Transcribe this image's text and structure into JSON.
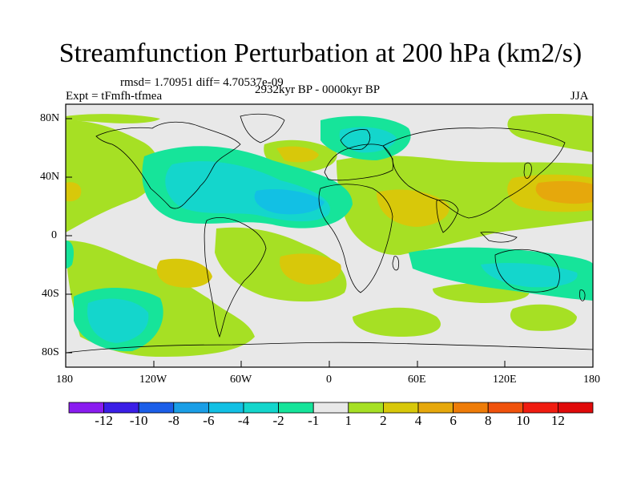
{
  "header": {
    "title": "Streamfunction Perturbation at 200 hPa (km2/s)",
    "stats": "rmsd= 1.70951 diff= 4.70537e-09",
    "experiment": "Expt = tFmfh-tfmea",
    "period": "2932kyr BP - 0000kyr BP",
    "season": "JJA"
  },
  "axes": {
    "lat_labels": [
      "80N",
      "40N",
      "0",
      "40S",
      "80S"
    ],
    "lon_labels": [
      "180",
      "120W",
      "60W",
      "0",
      "60E",
      "120E",
      "180"
    ]
  },
  "colorbar": {
    "labels": [
      "-12",
      "-10",
      "-8",
      "-6",
      "-4",
      "-2",
      "-1",
      "1",
      "2",
      "4",
      "6",
      "8",
      "10",
      "12"
    ],
    "colors": [
      "#8a1cf0",
      "#3a1ee6",
      "#1b5ee8",
      "#1a9ee6",
      "#12c0e4",
      "#14d6cc",
      "#16e49a",
      "#e8e8e8",
      "#a6e024",
      "#d8c80a",
      "#e6a80c",
      "#ee7c08",
      "#f0520c",
      "#f01c10",
      "#e00a0a"
    ]
  },
  "map_data": {
    "projection": "cylindrical-equidistant",
    "lon_range": [
      -180,
      180
    ],
    "lat_range": [
      -90,
      90
    ],
    "anomaly_regions": [
      {
        "name": "north-atlantic-low",
        "lon": -45,
        "lat": 30,
        "value": -4
      },
      {
        "name": "north-america-low",
        "lon": -95,
        "lat": 38,
        "value": -3
      },
      {
        "name": "south-pacific-low",
        "lon": -130,
        "lat": -45,
        "value": -4
      },
      {
        "name": "indian-ocean-low",
        "lon": 110,
        "lat": -25,
        "value": -3
      },
      {
        "name": "north-pacific-high",
        "lon": 165,
        "lat": 30,
        "value": 4
      },
      {
        "name": "asia-high",
        "lon": 60,
        "lat": 20,
        "value": 3
      },
      {
        "name": "south-atlantic-high",
        "lon": -25,
        "lat": -10,
        "value": 3
      },
      {
        "name": "north-atlantic-high",
        "lon": 10,
        "lat": 65,
        "value": -3
      }
    ]
  }
}
